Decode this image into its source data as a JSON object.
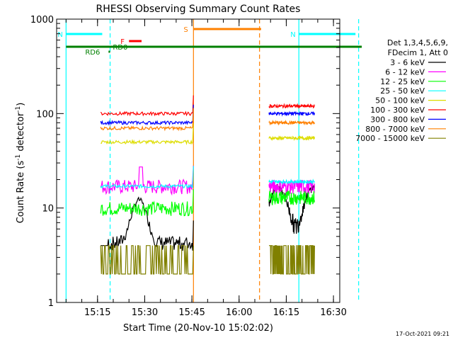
{
  "chart_data": {
    "type": "line",
    "title": "RHESSI Observing Summary Count Rates",
    "xlabel": "Start Time (20-Nov-10 15:02:02)",
    "ylabel_main": "Count Rate (s",
    "ylabel_sup1": "-1",
    "ylabel_mid": " detector",
    "ylabel_sup2": "-1",
    "ylabel_end": ")",
    "y_scale": "log",
    "ylim": [
      1,
      1000
    ],
    "y_ticks": [
      {
        "value": 1,
        "label": "1"
      },
      {
        "value": 10,
        "label": "10"
      },
      {
        "value": 100,
        "label": "100"
      },
      {
        "value": 1000,
        "label": "1000"
      }
    ],
    "x_range_min": [
      2,
      45
    ],
    "x_ticks": [
      {
        "value": 15.25,
        "label": "15:15"
      },
      {
        "value": 15.5,
        "label": "15:30"
      },
      {
        "value": 15.75,
        "label": "15:45"
      },
      {
        "value": 16.0,
        "label": "16:00"
      },
      {
        "value": 16.25,
        "label": "16:15"
      },
      {
        "value": 16.5,
        "label": "16:30"
      }
    ],
    "legend_title_1": "Det 1,3,4,5,6,9,",
    "legend_title_2": "FDecim 1, Att 0",
    "series": [
      {
        "name": "3 - 6 keV",
        "color": "#000000"
      },
      {
        "name": "6 - 12 keV",
        "color": "#ff00ff"
      },
      {
        "name": "12 - 25 keV",
        "color": "#00ff00"
      },
      {
        "name": "25 - 50 keV",
        "color": "#00ffff"
      },
      {
        "name": "50 - 100 keV",
        "color": "#dddd00"
      },
      {
        "name": "100 - 300 keV",
        "color": "#ff0000"
      },
      {
        "name": "300 - 800 keV",
        "color": "#0000ff"
      },
      {
        "name": "800 - 7000 keV",
        "color": "#ff8000"
      },
      {
        "name": "7000 - 15000 keV",
        "color": "#808000"
      }
    ],
    "segments": [
      {
        "start": "15:16:00",
        "end": "15:45:30",
        "levels": [
          6,
          17,
          10,
          17,
          50,
          100,
          80,
          70,
          3
        ]
      },
      {
        "start": "16:09:30",
        "end": "16:24:00",
        "levels": [
          7,
          17,
          13,
          19,
          55,
          120,
          100,
          80,
          3
        ]
      }
    ],
    "flags": [
      {
        "label": "N",
        "color": "#00ffff",
        "start": "15:05:00",
        "end": "15:16:30"
      },
      {
        "label": "N",
        "color": "#00ffff",
        "start": "16:19:00",
        "end": "16:37:00"
      },
      {
        "label": "F",
        "color": "#ff0000",
        "start": "15:25:00",
        "end": "15:29:00"
      },
      {
        "label": "S",
        "color": "#ff8000",
        "start": "15:45:30",
        "end": "16:07:00"
      },
      {
        "label": "RD0",
        "color": "#008000",
        "start": "15:05:00",
        "end": "16:39:00"
      },
      {
        "label": "RD6",
        "color": "#008000",
        "start": "15:18:30",
        "end": "15:19:00"
      }
    ],
    "vlines": [
      {
        "time": "15:19:00",
        "color": "#00ffff",
        "style": "dash"
      },
      {
        "time": "16:38:00",
        "color": "#00ffff",
        "style": "dash"
      },
      {
        "time": "16:06:30",
        "color": "#ff8000",
        "style": "dash"
      },
      {
        "time": "15:05:00",
        "color": "#00ffff",
        "style": "solid"
      },
      {
        "time": "16:19:00",
        "color": "#00ffff",
        "style": "solid"
      },
      {
        "time": "15:45:30",
        "color": "#ff8000",
        "style": "solid"
      }
    ],
    "footer_date": "17-Oct-2021 09:21"
  }
}
